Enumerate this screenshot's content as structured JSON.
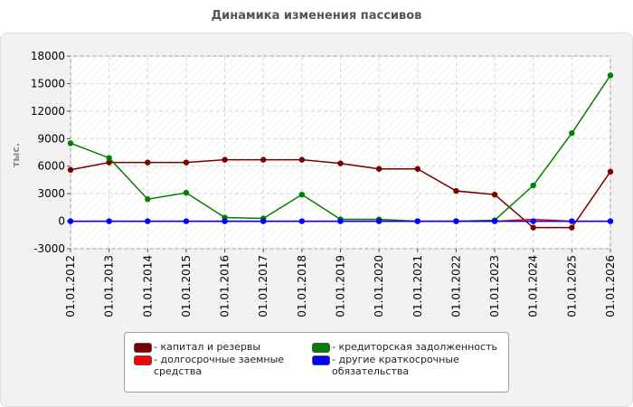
{
  "title": "Динамика изменения пассивов",
  "ylabel": "тыс.",
  "colors": {
    "capital": "#7a0000",
    "payables": "#008000",
    "longterm": "#ff0000",
    "other": "#0000ff"
  },
  "chart_data": {
    "type": "line",
    "title": "Динамика изменения пассивов",
    "ylabel": "тыс.",
    "xlabel": "",
    "ylim": [
      -3000,
      18000
    ],
    "yticks": [
      -3000,
      0,
      3000,
      6000,
      9000,
      12000,
      15000,
      18000
    ],
    "categories": [
      "01.01.2012",
      "01.01.2013",
      "01.01.2014",
      "01.01.2015",
      "01.01.2016",
      "01.01.2017",
      "01.01.2018",
      "01.01.2019",
      "01.01.2020",
      "01.01.2021",
      "01.01.2022",
      "01.01.2023",
      "01.01.2024",
      "01.01.2025",
      "01.01.2026"
    ],
    "grid": true,
    "legend_position": "bottom",
    "series": [
      {
        "name": "- капитал и резервы",
        "color": "#7a0000",
        "marker": true,
        "values": [
          5600,
          6400,
          6400,
          6400,
          6700,
          6700,
          6700,
          6300,
          5700,
          5700,
          3300,
          2900,
          -700,
          -700,
          5400
        ]
      },
      {
        "name": "- кредиторская задолженность",
        "color": "#008000",
        "marker": true,
        "values": [
          8500,
          6900,
          2400,
          3100,
          400,
          300,
          2900,
          200,
          200,
          0,
          0,
          100,
          3900,
          9600,
          15900
        ]
      },
      {
        "name": "- долгосрочные заемные средства",
        "color": "#ff0000",
        "marker": false,
        "values": [
          0,
          0,
          0,
          0,
          0,
          0,
          0,
          0,
          0,
          0,
          0,
          0,
          200,
          0,
          0
        ]
      },
      {
        "name": "- другие краткосрочные обязательства",
        "color": "#0000ff",
        "marker": true,
        "values": [
          0,
          0,
          0,
          0,
          0,
          0,
          0,
          0,
          0,
          0,
          0,
          0,
          0,
          0,
          0
        ]
      }
    ]
  },
  "legend": {
    "items": [
      {
        "label": "- капитал и резервы",
        "color": "#7a0000"
      },
      {
        "label": "- кредиторская задолженность",
        "color": "#008000"
      },
      {
        "label": "- долгосрочные заемные средства",
        "color": "#ff0000"
      },
      {
        "label": "- другие краткосрочные обязательства",
        "color": "#0000ff"
      }
    ]
  }
}
